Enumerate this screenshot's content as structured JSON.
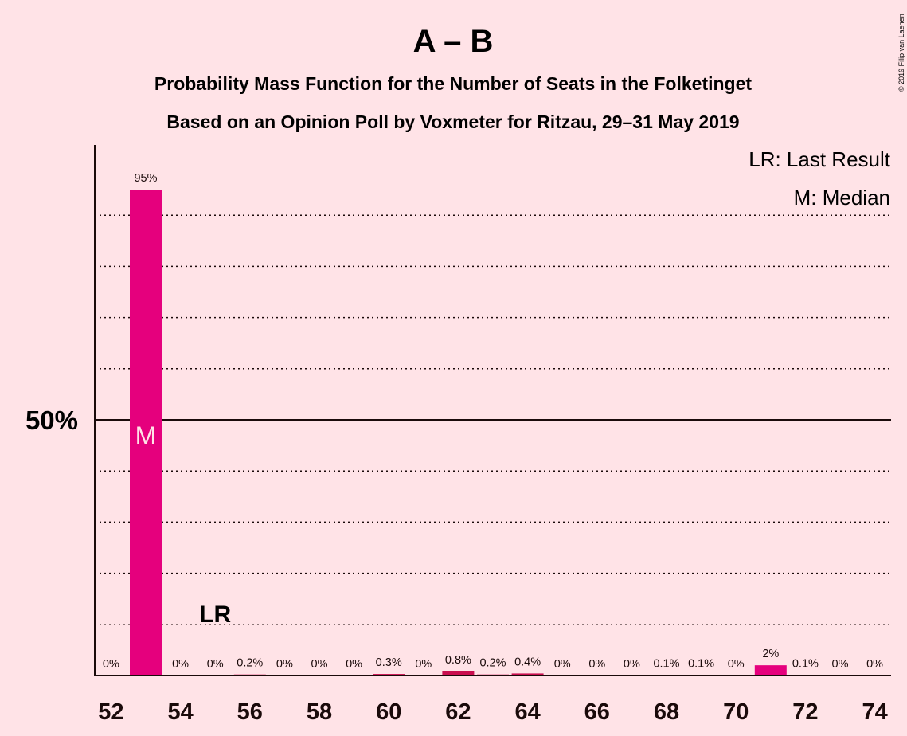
{
  "chart_data": {
    "type": "bar",
    "title": "A – B",
    "subtitle_1": "Probability Mass Function for the Number of Seats in the Folketinget",
    "subtitle_2": "Based on an Opinion Poll by Voxmeter for Ritzau, 29–31 May 2019",
    "copyright": "© 2019 Filip van Laenen",
    "legend": {
      "last_result": "LR: Last Result",
      "median": "M: Median",
      "position": "top-right"
    },
    "x": [
      52,
      53,
      54,
      55,
      56,
      57,
      58,
      59,
      60,
      61,
      62,
      63,
      64,
      65,
      66,
      67,
      68,
      69,
      70,
      71,
      72,
      73,
      74
    ],
    "values": [
      0,
      95,
      0,
      0,
      0.2,
      0,
      0,
      0,
      0.3,
      0,
      0.8,
      0.2,
      0.4,
      0,
      0,
      0,
      0.1,
      0.1,
      0,
      2,
      0.1,
      0,
      0
    ],
    "data_labels": [
      "0%",
      "95%",
      "0%",
      "0%",
      "0.2%",
      "0%",
      "0%",
      "0%",
      "0.3%",
      "0%",
      "0.8%",
      "0.2%",
      "0.4%",
      "0%",
      "0%",
      "0%",
      "0.1%",
      "0.1%",
      "0%",
      "2%",
      "0.1%",
      "0%",
      "0%"
    ],
    "x_tick_labels": [
      "52",
      "54",
      "56",
      "58",
      "60",
      "62",
      "64",
      "66",
      "68",
      "70",
      "72",
      "74"
    ],
    "y_tick_label": "50%",
    "y_tick_value": 50,
    "ylim": [
      0,
      100
    ],
    "gridlines_every": 10,
    "median_seat": 53,
    "median_marker": "M",
    "last_result_seat": 55,
    "last_result_marker": "LR",
    "colors": {
      "background": "#FFE3E7",
      "bar_main": "#E5007D",
      "bar_minor": "#C90E4F",
      "text": "#1a0a0a"
    }
  }
}
